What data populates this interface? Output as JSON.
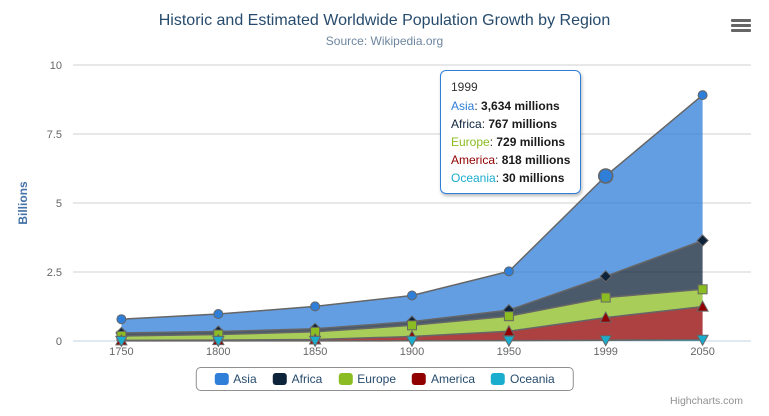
{
  "header": {
    "title": "Historic and Estimated Worldwide Population Growth by Region",
    "subtitle": "Source: Wikipedia.org"
  },
  "credits": "Highcharts.com",
  "chart_data": {
    "type": "area",
    "stacking": "normal",
    "title": "Historic and Estimated Worldwide Population Growth by Region",
    "subtitle": "Source: Wikipedia.org",
    "categories": [
      "1750",
      "1800",
      "1850",
      "1900",
      "1950",
      "1999",
      "2050"
    ],
    "series": [
      {
        "name": "Asia",
        "color": "#2F7ED8",
        "marker": "circle",
        "values": [
          502,
          635,
          809,
          947,
          1402,
          3634,
          5268
        ]
      },
      {
        "name": "Africa",
        "color": "#0D233A",
        "marker": "diamond",
        "values": [
          106,
          107,
          111,
          133,
          221,
          767,
          1766
        ]
      },
      {
        "name": "Europe",
        "color": "#8BBC21",
        "marker": "square",
        "values": [
          163,
          203,
          276,
          408,
          547,
          729,
          628
        ]
      },
      {
        "name": "America",
        "color": "#910000",
        "marker": "triangle",
        "values": [
          18,
          31,
          54,
          156,
          339,
          818,
          1201
        ]
      },
      {
        "name": "Oceania",
        "color": "#1AADCE",
        "marker": "triangle-down",
        "values": [
          2,
          2,
          2,
          6,
          13,
          30,
          46
        ]
      }
    ],
    "unit": "millions",
    "xlabel": "",
    "ylabel": "Billions",
    "yticks": [
      0,
      2.5,
      5,
      7.5,
      10
    ],
    "ylim": [
      0,
      10
    ],
    "grid": true,
    "legend_position": "bottom",
    "fill_opacity": 0.75,
    "line_color": "#666666",
    "grid_color": "#D1D1D1",
    "axis_line_color": "#C0D0E0",
    "axis_label_color": "#666666",
    "yaxis_title_color": "#4572A7"
  },
  "tooltip": {
    "category": "1999",
    "border_color": "#2F7ED8",
    "rows": [
      {
        "name": "Asia",
        "color": "#2F7ED8",
        "value_text": "3,634 millions"
      },
      {
        "name": "Africa",
        "color": "#0D233A",
        "value_text": "767 millions"
      },
      {
        "name": "Europe",
        "color": "#8BBC21",
        "value_text": "729 millions"
      },
      {
        "name": "America",
        "color": "#910000",
        "value_text": "818 millions"
      },
      {
        "name": "Oceania",
        "color": "#1AADCE",
        "value_text": "30 millions"
      }
    ]
  },
  "hover": {
    "series": "Asia",
    "category": "1999"
  }
}
